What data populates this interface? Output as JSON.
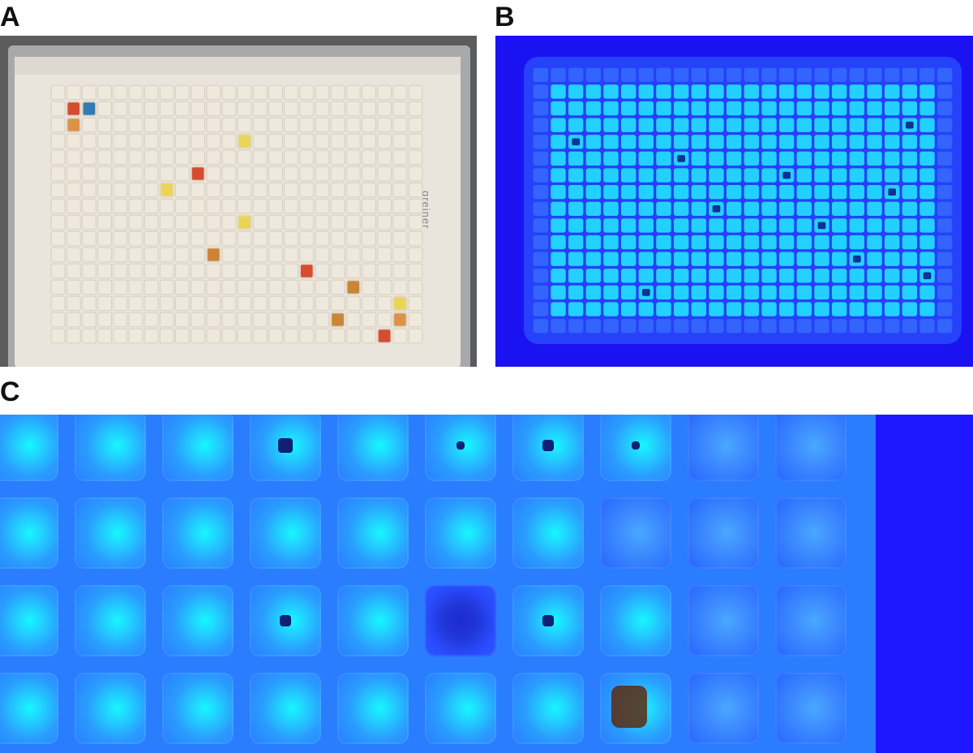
{
  "figure": {
    "panel_labels": {
      "a": "A",
      "b": "B",
      "c": "C"
    }
  },
  "panel_a": {
    "plate_brand_text": "greiner"
  },
  "colors": {
    "plate_blue": "#1b12f2",
    "well_cyan": "#16f7ff",
    "plate_white": "#e9e4dc",
    "amber": "#c57a25",
    "red": "#d13b1e",
    "yellow": "#e8d14a"
  },
  "panel_c": {
    "rows": 4,
    "cols": 10
  }
}
